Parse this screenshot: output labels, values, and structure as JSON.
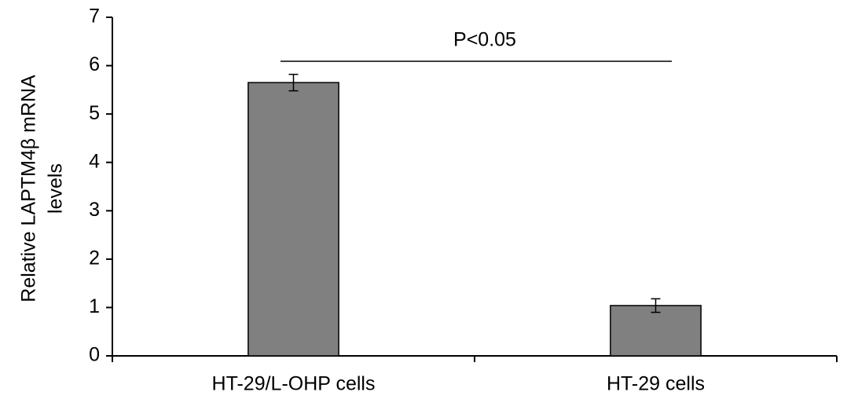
{
  "chart_data": {
    "type": "bar",
    "ylabel": [
      "Relative LAPTM4β mRNA",
      "levels"
    ],
    "categories": [
      "HT-29/L-OHP cells",
      "HT-29 cells"
    ],
    "series": [
      {
        "color": "#808080",
        "values": [
          5.65,
          1.04
        ],
        "errors": [
          0.17,
          0.14
        ]
      }
    ],
    "ylim": [
      0,
      7
    ],
    "yticks": [
      0,
      1,
      2,
      3,
      4,
      5,
      6,
      7
    ],
    "annotation": "P<0.05"
  }
}
